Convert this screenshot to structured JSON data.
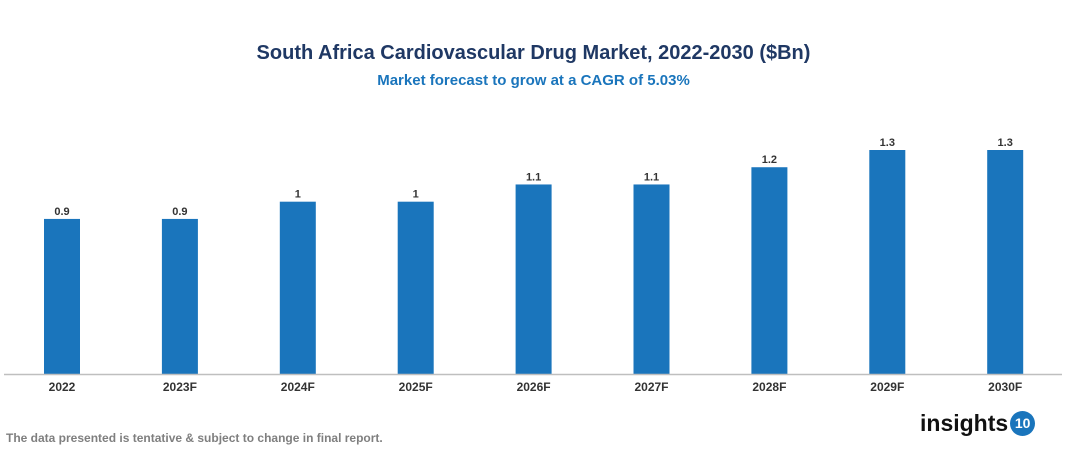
{
  "chart_data": {
    "type": "bar",
    "title": "South Africa Cardiovascular Drug Market, 2022-2030 ($Bn)",
    "subtitle": "Market forecast to grow at a CAGR of 5.03%",
    "categories": [
      "2022",
      "2023F",
      "2024F",
      "2025F",
      "2026F",
      "2027F",
      "2028F",
      "2029F",
      "2030F"
    ],
    "values": [
      0.9,
      0.9,
      1,
      1,
      1.1,
      1.1,
      1.2,
      1.3,
      1.3
    ],
    "xlabel": "",
    "ylabel": "",
    "ylim": [
      0,
      1.3
    ],
    "grid": false,
    "bar_color": "#1a75bc"
  },
  "footnote": "The data presented is tentative & subject to change in final report.",
  "logo": {
    "text": "insights",
    "badge": "10"
  }
}
